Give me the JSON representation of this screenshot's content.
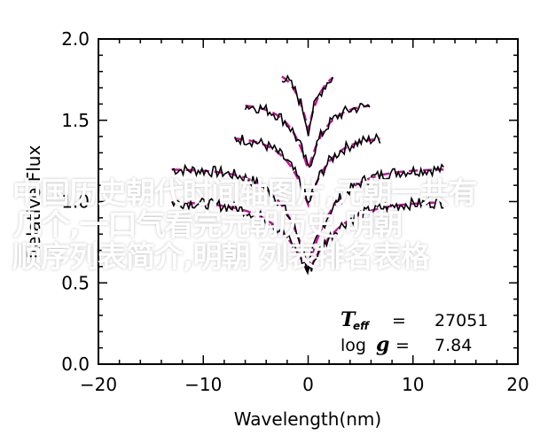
{
  "chart_data": {
    "type": "line",
    "xlabel": "Wavelength(nm)",
    "ylabel": "Relative Flux",
    "xlim": [
      -20,
      20
    ],
    "ylim": [
      0.0,
      2.0
    ],
    "x_ticks": [
      "−20",
      "−10",
      "0",
      "10",
      "20"
    ],
    "y_ticks": [
      "0.0",
      "0.5",
      "1.0",
      "1.5",
      "2.0"
    ],
    "grid": false,
    "legend": {
      "teff_symbol": "T",
      "teff_subscript": "eff",
      "teff_eq": "=",
      "teff_value": "27051",
      "logg_label": "log",
      "logg_symbol": "g",
      "logg_eq": "=",
      "logg_value": "7.84"
    },
    "series": [
      {
        "line": "observed",
        "color": "#000000",
        "profiles": [
          {
            "xrange": [
              -13,
              13
            ],
            "continuum": 1.2,
            "depth": 0.72,
            "width": 2.4
          },
          {
            "xrange": [
              -7,
              7
            ],
            "continuum": 1.4,
            "depth": 0.5,
            "width": 1.9
          },
          {
            "xrange": [
              -6,
              6
            ],
            "continuum": 1.6,
            "depth": 0.48,
            "width": 1.6
          },
          {
            "xrange": [
              -2.5,
              2.5
            ],
            "continuum": 1.82,
            "depth": 0.45,
            "width": 1.2
          },
          {
            "xrange": [
              -13,
              13
            ],
            "continuum": 1.0,
            "depth": 0.52,
            "width": 2.8
          }
        ]
      },
      {
        "line": "model",
        "color": "#c2179a"
      }
    ]
  },
  "overlay_text": [
    "中国历史朝代时间轴图片,元朝一共有",
    "几个,一口气看完元朝历史,明朝",
    "顺序列表简介,明朝 列表排名表格"
  ]
}
